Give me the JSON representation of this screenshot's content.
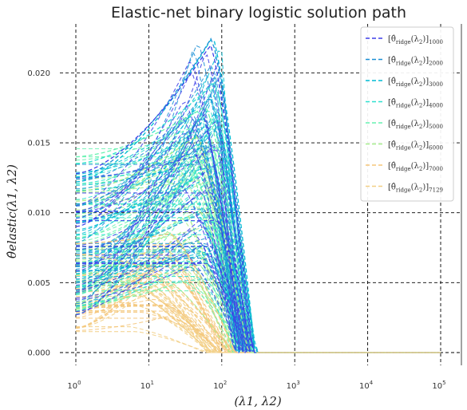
{
  "chart_data": {
    "type": "line",
    "title": "Elastic-net binary logistic solution path",
    "xlabel": "(λ1, λ2)",
    "ylabel": "θ̂elastic(λ1, λ2)",
    "x_scale": "log",
    "xlim": [
      1,
      100000
    ],
    "ylim": [
      0,
      0.0235
    ],
    "x_ticks": [
      1,
      10,
      100,
      1000,
      10000,
      100000
    ],
    "x_tick_labels": [
      {
        "base": "10",
        "exp": "0"
      },
      {
        "base": "10",
        "exp": "1"
      },
      {
        "base": "10",
        "exp": "2"
      },
      {
        "base": "10",
        "exp": "3"
      },
      {
        "base": "10",
        "exp": "4"
      },
      {
        "base": "10",
        "exp": "5"
      }
    ],
    "y_ticks": [
      0.0,
      0.005,
      0.01,
      0.015,
      0.02
    ],
    "y_tick_labels": [
      "0.000",
      "0.005",
      "0.010",
      "0.015",
      "0.020"
    ],
    "grid": true,
    "legend_placement": "top-right",
    "series": [
      {
        "name": "[θ̂ridge(λ2)]1000",
        "color": "#3f3fe8",
        "peak": 0.022,
        "peak_x": 70,
        "zero_x": 265,
        "start": 0.0128
      },
      {
        "name": "[θ̂ridge(λ2)]2000",
        "color": "#1a8fd6",
        "peak": 0.0225,
        "peak_x": 72,
        "zero_x": 275,
        "start": 0.0125
      },
      {
        "name": "[θ̂ridge(λ2)]3000",
        "color": "#00bcd4",
        "peak": 0.0226,
        "peak_x": 75,
        "zero_x": 285,
        "start": 0.0122
      },
      {
        "name": "[θ̂ridge(λ2)]4000",
        "color": "#2ee0cf",
        "peak": 0.0193,
        "peak_x": 80,
        "zero_x": 280,
        "start": 0.0135
      },
      {
        "name": "[θ̂ridge(λ2)]5000",
        "color": "#66f2b0",
        "peak": 0.0176,
        "peak_x": 60,
        "zero_x": 255,
        "start": 0.014
      },
      {
        "name": "[θ̂ridge(λ2)]6000",
        "color": "#a6ee8c",
        "peak": 0.0155,
        "peak_x": 45,
        "zero_x": 230,
        "start": 0.0115
      },
      {
        "name": "[θ̂ridge(λ2)]7000",
        "color": "#f5c57a",
        "peak": 0.0085,
        "peak_x": 20,
        "zero_x": 150,
        "start": 0.0078
      },
      {
        "name": "[θ̂ridge(λ2)]7129",
        "color": "#f2cf85",
        "peak": 0.006,
        "peak_x": 10,
        "zero_x": 100,
        "start": 0.007
      }
    ]
  }
}
